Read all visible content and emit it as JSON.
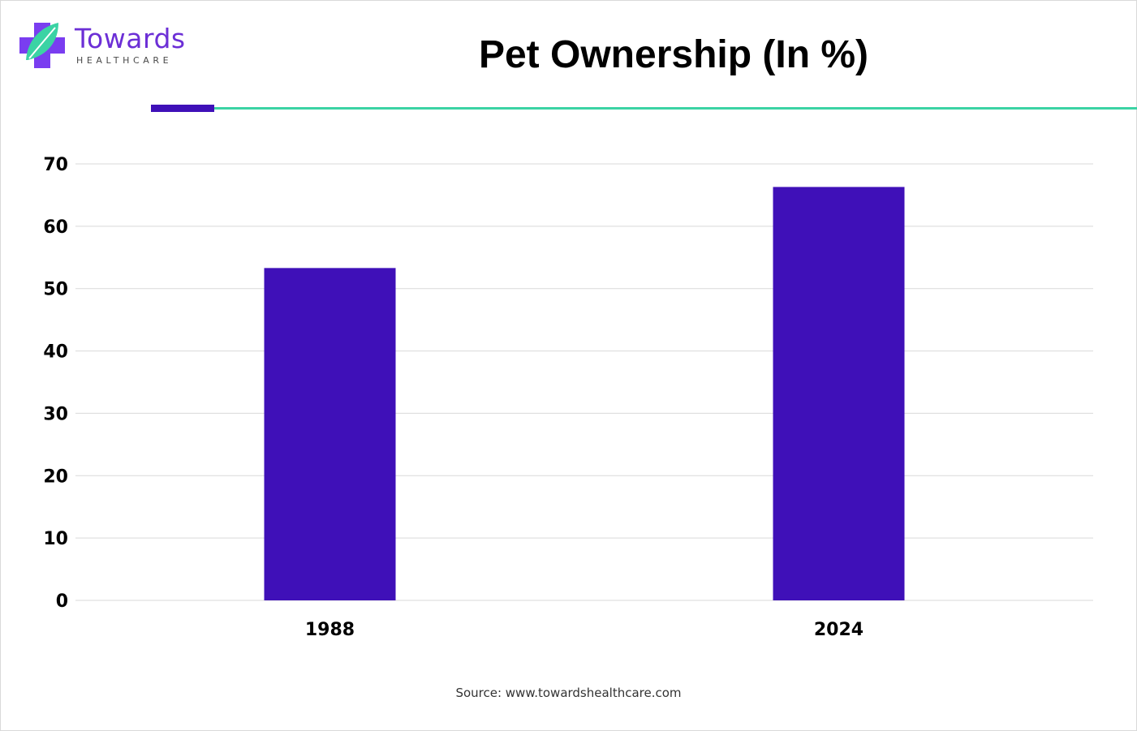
{
  "brand": {
    "name": "Towards",
    "subtitle": "HEALTHCARE",
    "icon": "plus-leaf-logo",
    "colors": {
      "primary": "#6c2fd6",
      "leaf": "#3bd3a4"
    }
  },
  "accent_colors": {
    "bar": "#3f10b8",
    "rule": "#3bd3a4",
    "rule_accent": "#3f10b8",
    "grid": "#d9d9d9"
  },
  "source": "Source: www.towardshealthcare.com",
  "chart_data": {
    "type": "bar",
    "title": "Pet Ownership (In %)",
    "categories": [
      "1988",
      "2024"
    ],
    "values": [
      53.3,
      66.3
    ],
    "ylim": [
      0,
      70
    ],
    "yticks": [
      0,
      10,
      20,
      30,
      40,
      50,
      60,
      70
    ],
    "grid": true,
    "legend": "none",
    "bar_color": "#3f10b8"
  }
}
